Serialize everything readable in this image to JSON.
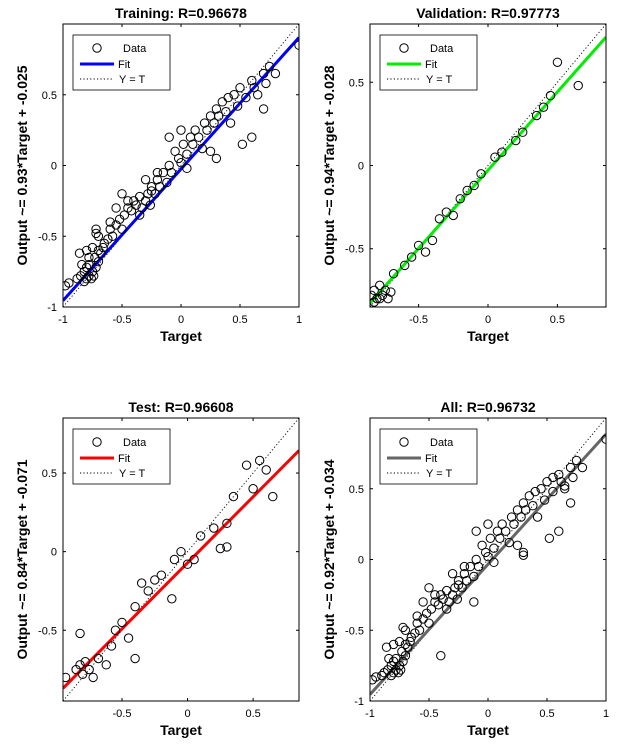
{
  "chart_data": [
    {
      "type": "scatter",
      "title": "Training: R=0.96678",
      "xlabel": "Target",
      "ylabel": "Output ~= 0.93*Target + -0.025",
      "xlim": [
        -1,
        1
      ],
      "ylim": [
        -1,
        1
      ],
      "xticks": [
        -1,
        -0.5,
        0,
        0.5,
        1
      ],
      "yticks": [
        -1,
        -0.5,
        0,
        0.5
      ],
      "fit": {
        "slope": 0.93,
        "intercept": -0.025,
        "color": "#0000FF"
      },
      "legend": {
        "placement": "top-left",
        "entries": [
          "Data",
          "Fit",
          "Y = T"
        ]
      },
      "grid": false,
      "series": [
        {
          "name": "Data",
          "x": [
            -0.98,
            -0.95,
            -0.88,
            -0.85,
            -0.82,
            -0.82,
            -0.8,
            -0.8,
            -0.78,
            -0.78,
            -0.76,
            -0.75,
            -0.74,
            -0.73,
            -0.72,
            -0.7,
            -0.7,
            -0.68,
            -0.66,
            -0.65,
            -0.62,
            -0.6,
            -0.58,
            -0.55,
            -0.52,
            -0.5,
            -0.48,
            -0.45,
            -0.42,
            -0.4,
            -0.38,
            -0.35,
            -0.33,
            -0.3,
            -0.28,
            -0.26,
            -0.25,
            -0.22,
            -0.2,
            -0.18,
            -0.15,
            -0.12,
            -0.1,
            -0.08,
            -0.05,
            -0.02,
            0.0,
            0.02,
            0.05,
            0.08,
            0.1,
            0.12,
            0.15,
            0.2,
            0.22,
            0.25,
            0.28,
            0.3,
            0.32,
            0.35,
            0.38,
            0.4,
            0.45,
            0.48,
            0.5,
            0.55,
            0.6,
            0.62,
            0.65,
            0.7,
            0.72,
            0.75,
            0.8,
            1.0,
            -0.72,
            -0.7,
            -0.72,
            -0.55,
            -0.5,
            -0.35,
            -0.3,
            -0.2,
            -0.1,
            0.0,
            0.25,
            0.3,
            0.6,
            0.7,
            -0.8,
            -0.78,
            -0.84,
            -0.86,
            -0.75,
            -0.6,
            -0.45,
            -0.25,
            0.05,
            0.18,
            0.42,
            0.52
          ],
          "y": [
            -0.85,
            -0.83,
            -0.8,
            -0.78,
            -0.82,
            -0.75,
            -0.8,
            -0.72,
            -0.78,
            -0.7,
            -0.8,
            -0.75,
            -0.78,
            -0.65,
            -0.72,
            -0.68,
            -0.6,
            -0.62,
            -0.58,
            -0.55,
            -0.52,
            -0.45,
            -0.5,
            -0.42,
            -0.38,
            -0.45,
            -0.35,
            -0.3,
            -0.32,
            -0.25,
            -0.28,
            -0.22,
            -0.3,
            -0.25,
            -0.2,
            -0.28,
            -0.15,
            -0.2,
            -0.1,
            -0.15,
            -0.05,
            -0.12,
            0.0,
            -0.05,
            0.1,
            0.05,
            0.02,
            0.15,
            0.08,
            0.2,
            0.15,
            0.25,
            0.2,
            0.3,
            0.25,
            0.35,
            0.3,
            0.4,
            0.35,
            0.45,
            0.38,
            0.48,
            0.5,
            0.42,
            0.55,
            0.48,
            0.6,
            0.55,
            0.5,
            0.65,
            0.58,
            0.7,
            0.65,
            0.85,
            -0.48,
            -0.5,
            -0.45,
            -0.3,
            -0.2,
            -0.35,
            -0.1,
            -0.05,
            0.2,
            0.25,
            0.1,
            0.05,
            0.2,
            0.4,
            -0.6,
            -0.65,
            -0.7,
            -0.62,
            -0.58,
            -0.4,
            -0.25,
            -0.18,
            -0.02,
            0.12,
            0.3,
            0.15
          ]
        }
      ]
    },
    {
      "type": "scatter",
      "title": "Validation: R=0.97773",
      "xlabel": "Target",
      "ylabel": "Output ~= 0.94*Target + -0.028",
      "xlim": [
        -0.85,
        0.85
      ],
      "ylim": [
        -0.85,
        0.85
      ],
      "xticks": [
        -0.5,
        0,
        0.5
      ],
      "yticks": [
        -0.5,
        0,
        0.5
      ],
      "fit": {
        "slope": 0.94,
        "intercept": -0.028,
        "color": "#00EE00"
      },
      "legend": {
        "placement": "top-left",
        "entries": [
          "Data",
          "Fit",
          "Y = T"
        ]
      },
      "grid": false,
      "series": [
        {
          "name": "Data",
          "x": [
            -0.84,
            -0.82,
            -0.8,
            -0.78,
            -0.76,
            -0.74,
            -0.72,
            -0.68,
            -0.6,
            -0.55,
            -0.5,
            -0.45,
            -0.4,
            -0.35,
            -0.3,
            -0.25,
            -0.2,
            -0.15,
            -0.1,
            -0.05,
            0.05,
            0.1,
            0.2,
            0.25,
            0.35,
            0.4,
            0.45,
            0.5,
            0.65,
            -0.82,
            -0.78,
            -0.7
          ],
          "y": [
            -0.78,
            -0.75,
            -0.8,
            -0.72,
            -0.78,
            -0.75,
            -0.8,
            -0.65,
            -0.6,
            -0.55,
            -0.48,
            -0.52,
            -0.45,
            -0.32,
            -0.28,
            -0.3,
            -0.2,
            -0.15,
            -0.12,
            -0.05,
            0.05,
            0.08,
            0.15,
            0.2,
            0.3,
            0.35,
            0.42,
            0.62,
            0.48,
            -0.82,
            -0.8,
            -0.76
          ]
        }
      ]
    },
    {
      "type": "scatter",
      "title": "Test: R=0.96608",
      "xlabel": "Target",
      "ylabel": "Output ~= 0.84*Target + -0.071",
      "xlim": [
        -0.95,
        0.85
      ],
      "ylim": [
        -0.95,
        0.85
      ],
      "xticks": [
        -0.5,
        0,
        0.5
      ],
      "yticks": [
        -0.5,
        0,
        0.5
      ],
      "fit": {
        "slope": 0.84,
        "intercept": -0.071,
        "color": "#FF0000"
      },
      "legend": {
        "placement": "top-left",
        "entries": [
          "Data",
          "Fit",
          "Y = T"
        ]
      },
      "grid": false,
      "series": [
        {
          "name": "Data",
          "x": [
            -0.93,
            -0.85,
            -0.82,
            -0.8,
            -0.78,
            -0.75,
            -0.72,
            -0.68,
            -0.62,
            -0.58,
            -0.55,
            -0.5,
            -0.45,
            -0.4,
            -0.35,
            -0.3,
            -0.25,
            -0.2,
            -0.1,
            -0.05,
            0.0,
            0.05,
            0.1,
            0.2,
            0.25,
            0.3,
            0.35,
            0.45,
            0.5,
            0.55,
            0.6,
            0.65,
            -0.82,
            -0.4,
            -0.12,
            0.3
          ],
          "y": [
            -0.8,
            -0.75,
            -0.72,
            -0.78,
            -0.7,
            -0.75,
            -0.8,
            -0.68,
            -0.72,
            -0.6,
            -0.5,
            -0.45,
            -0.55,
            -0.35,
            -0.2,
            -0.25,
            -0.18,
            -0.15,
            -0.05,
            0.0,
            -0.08,
            -0.05,
            0.1,
            0.15,
            0.02,
            0.18,
            0.35,
            0.55,
            0.4,
            0.58,
            0.52,
            0.35,
            -0.52,
            -0.68,
            -0.3,
            0.03
          ]
        }
      ]
    },
    {
      "type": "scatter",
      "title": "All: R=0.96732",
      "xlabel": "Target",
      "ylabel": "Output ~= 0.92*Target + -0.034",
      "xlim": [
        -1,
        1
      ],
      "ylim": [
        -1,
        1
      ],
      "xticks": [
        -1,
        -0.5,
        0,
        0.5,
        1
      ],
      "yticks": [
        -1,
        -0.5,
        0,
        0.5
      ],
      "fit": {
        "slope": 0.92,
        "intercept": -0.034,
        "color": "#666666"
      },
      "legend": {
        "placement": "top-left",
        "entries": [
          "Data",
          "Fit",
          "Y = T"
        ]
      },
      "grid": false,
      "series": [
        {
          "name": "Data",
          "x": [
            -0.98,
            -0.95,
            -0.9,
            -0.88,
            -0.85,
            -0.82,
            -0.82,
            -0.8,
            -0.8,
            -0.78,
            -0.78,
            -0.76,
            -0.75,
            -0.74,
            -0.73,
            -0.72,
            -0.7,
            -0.7,
            -0.68,
            -0.66,
            -0.65,
            -0.62,
            -0.6,
            -0.58,
            -0.55,
            -0.52,
            -0.5,
            -0.48,
            -0.45,
            -0.42,
            -0.4,
            -0.38,
            -0.35,
            -0.33,
            -0.3,
            -0.28,
            -0.26,
            -0.25,
            -0.22,
            -0.2,
            -0.18,
            -0.15,
            -0.12,
            -0.1,
            -0.08,
            -0.05,
            -0.02,
            0.0,
            0.02,
            0.05,
            0.08,
            0.1,
            0.12,
            0.15,
            0.2,
            0.22,
            0.25,
            0.28,
            0.3,
            0.32,
            0.35,
            0.38,
            0.4,
            0.45,
            0.48,
            0.5,
            0.55,
            0.6,
            0.62,
            0.65,
            0.7,
            0.72,
            0.75,
            0.8,
            1.0,
            -0.72,
            -0.7,
            -0.55,
            -0.5,
            -0.35,
            -0.3,
            -0.2,
            -0.1,
            0.0,
            0.25,
            0.3,
            0.6,
            0.7,
            -0.8,
            -0.84,
            -0.86,
            -0.75,
            -0.6,
            -0.45,
            -0.25,
            0.05,
            0.18,
            0.42,
            0.52,
            -0.4,
            -0.12,
            0.3,
            0.55,
            0.65
          ],
          "y": [
            -0.85,
            -0.83,
            -0.82,
            -0.8,
            -0.78,
            -0.82,
            -0.75,
            -0.8,
            -0.72,
            -0.78,
            -0.7,
            -0.8,
            -0.75,
            -0.78,
            -0.65,
            -0.72,
            -0.68,
            -0.6,
            -0.62,
            -0.58,
            -0.55,
            -0.52,
            -0.45,
            -0.5,
            -0.42,
            -0.38,
            -0.45,
            -0.35,
            -0.3,
            -0.32,
            -0.25,
            -0.28,
            -0.22,
            -0.3,
            -0.25,
            -0.2,
            -0.28,
            -0.15,
            -0.2,
            -0.1,
            -0.15,
            -0.05,
            -0.12,
            0.0,
            -0.05,
            0.1,
            0.05,
            0.02,
            0.15,
            0.08,
            0.2,
            0.15,
            0.25,
            0.2,
            0.3,
            0.25,
            0.35,
            0.3,
            0.4,
            0.35,
            0.45,
            0.38,
            0.48,
            0.5,
            0.42,
            0.55,
            0.48,
            0.6,
            0.55,
            0.5,
            0.65,
            0.58,
            0.7,
            0.65,
            0.85,
            -0.48,
            -0.5,
            -0.3,
            -0.2,
            -0.35,
            -0.1,
            -0.05,
            0.2,
            0.25,
            0.1,
            0.05,
            0.2,
            0.4,
            -0.6,
            -0.7,
            -0.62,
            -0.58,
            -0.4,
            -0.25,
            -0.18,
            -0.02,
            0.12,
            0.3,
            0.15,
            -0.68,
            -0.3,
            0.03,
            0.58,
            0.52
          ]
        }
      ]
    }
  ]
}
